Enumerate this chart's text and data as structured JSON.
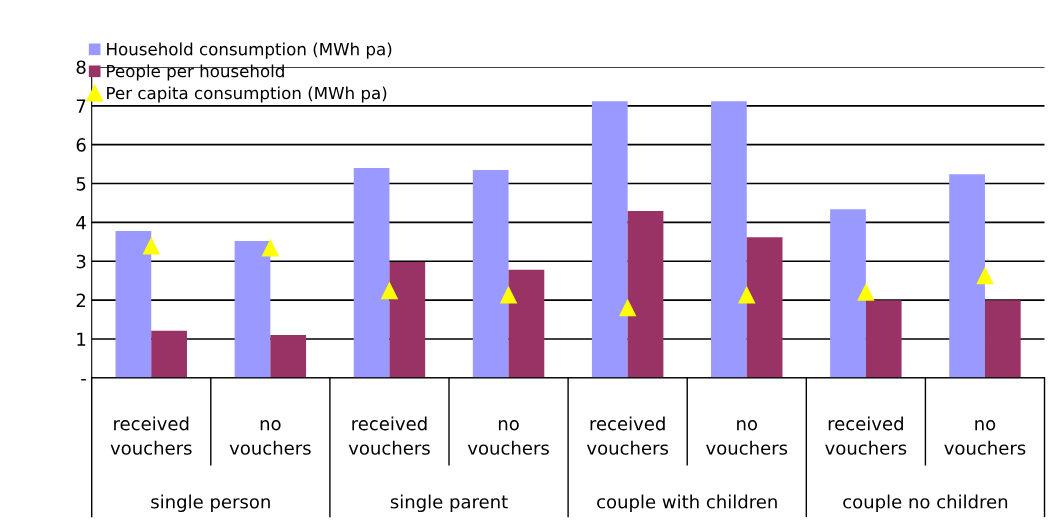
{
  "chart_data": {
    "type": "bar",
    "categories": [
      "received vouchers",
      "no vouchers",
      "received vouchers",
      "no vouchers",
      "received vouchers",
      "no vouchers",
      "received vouchers",
      "no vouchers"
    ],
    "series": [
      {
        "name": "Household consumption (MWh pa)",
        "color": "#9999ff",
        "values": [
          3.78,
          3.52,
          5.4,
          5.35,
          7.12,
          7.12,
          4.34,
          5.24
        ]
      },
      {
        "name": "People per household",
        "color": "#993366",
        "values": [
          1.21,
          1.1,
          2.98,
          2.78,
          4.29,
          3.62,
          2.0,
          2.0
        ]
      },
      {
        "name": "Per capita consumption (MWh pa)",
        "color": "#ffff00",
        "type": "scatter",
        "marker": "triangle",
        "values": [
          3.39,
          3.34,
          2.24,
          2.13,
          1.8,
          2.13,
          2.2,
          2.62
        ]
      }
    ],
    "annotations": [
      "single person",
      "single parent",
      "couple with children",
      "couple no children"
    ],
    "ylim": [
      0,
      8
    ],
    "yticks": [
      {
        "value": 0,
        "label": "-"
      },
      1,
      2,
      3,
      4,
      5,
      6,
      7,
      8
    ],
    "grid": "y",
    "legend": "top left"
  }
}
